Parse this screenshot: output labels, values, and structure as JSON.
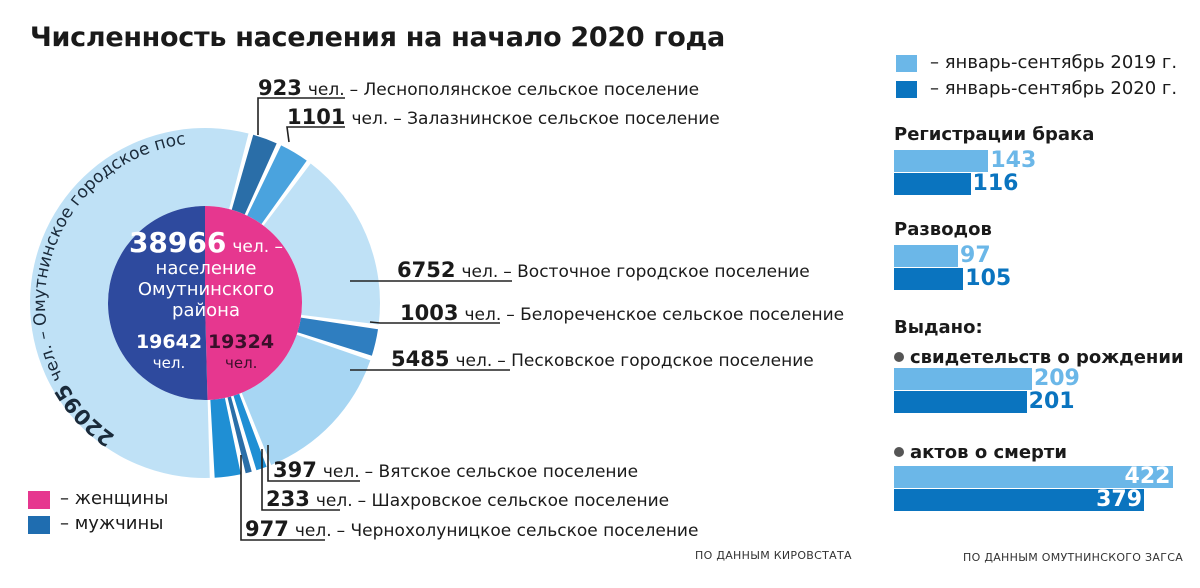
{
  "title": "Численность населения на начало 2020 года",
  "colors": {
    "women": "#e6378f",
    "men": "#1f6db0",
    "bar_2019": "#6bb7e8",
    "bar_2020": "#0a74bf"
  },
  "chart_data": [
    {
      "type": "pie",
      "title": "Численность населения на начало 2020 года",
      "unit": "чел.",
      "total": {
        "value": 38966,
        "unit": "чел. –",
        "caption": [
          "население",
          "Омутнинского",
          "района"
        ]
      },
      "inner_ring": [
        {
          "name": "мужчины",
          "value": 19642,
          "unit": "чел."
        },
        {
          "name": "женщины",
          "value": 19324,
          "unit": "чел."
        }
      ],
      "segments": [
        {
          "value": 923,
          "unit": "чел.",
          "label": "– Леснополянское сельское поселение"
        },
        {
          "value": 1101,
          "unit": "чел.",
          "label": "– Залазнинское сельское поселение"
        },
        {
          "value": 6752,
          "unit": "чел.",
          "label": "– Восточное городское поселение"
        },
        {
          "value": 1003,
          "unit": "чел.",
          "label": "– Белореченское сельское поселение"
        },
        {
          "value": 5485,
          "unit": "чел.",
          "label": "– Песковское городское поселение"
        },
        {
          "value": 397,
          "unit": "чел.",
          "label": "– Вятское сельское поселение"
        },
        {
          "value": 233,
          "unit": "чел.",
          "label": "– Шахровское сельское поселение"
        },
        {
          "value": 977,
          "unit": "чел.",
          "label": "– Чернохолуницкое сельское поселение"
        },
        {
          "value": 22095,
          "unit": "чел. –",
          "label": "Омутнинское городское поселение"
        }
      ],
      "legend": [
        {
          "name": "– женщины",
          "color": "#e6378f"
        },
        {
          "name": "– мужчины",
          "color": "#1f6db0"
        }
      ],
      "source": "ПО ДАННЫМ КИРОВСТАТА"
    },
    {
      "type": "bar",
      "legend": [
        {
          "name": "– январь-сентябрь 2019 г.",
          "color": "#6bb7e8"
        },
        {
          "name": "– январь-сентябрь 2020 г.",
          "color": "#0a74bf"
        }
      ],
      "sections": [
        {
          "label": "Регистрации брака",
          "bullet": false,
          "values": [
            143,
            116
          ]
        },
        {
          "label": "Разводов",
          "bullet": false,
          "values": [
            97,
            105
          ]
        },
        {
          "label": "свидетельств о рождении",
          "bullet": true,
          "values": [
            209,
            201
          ]
        },
        {
          "label": "актов о смерти",
          "bullet": true,
          "values": [
            422,
            379
          ]
        }
      ],
      "group_header": "Выдано:",
      "source": "ПО ДАННЫМ ОМУТНИНСКОГО ЗАГСА"
    }
  ]
}
